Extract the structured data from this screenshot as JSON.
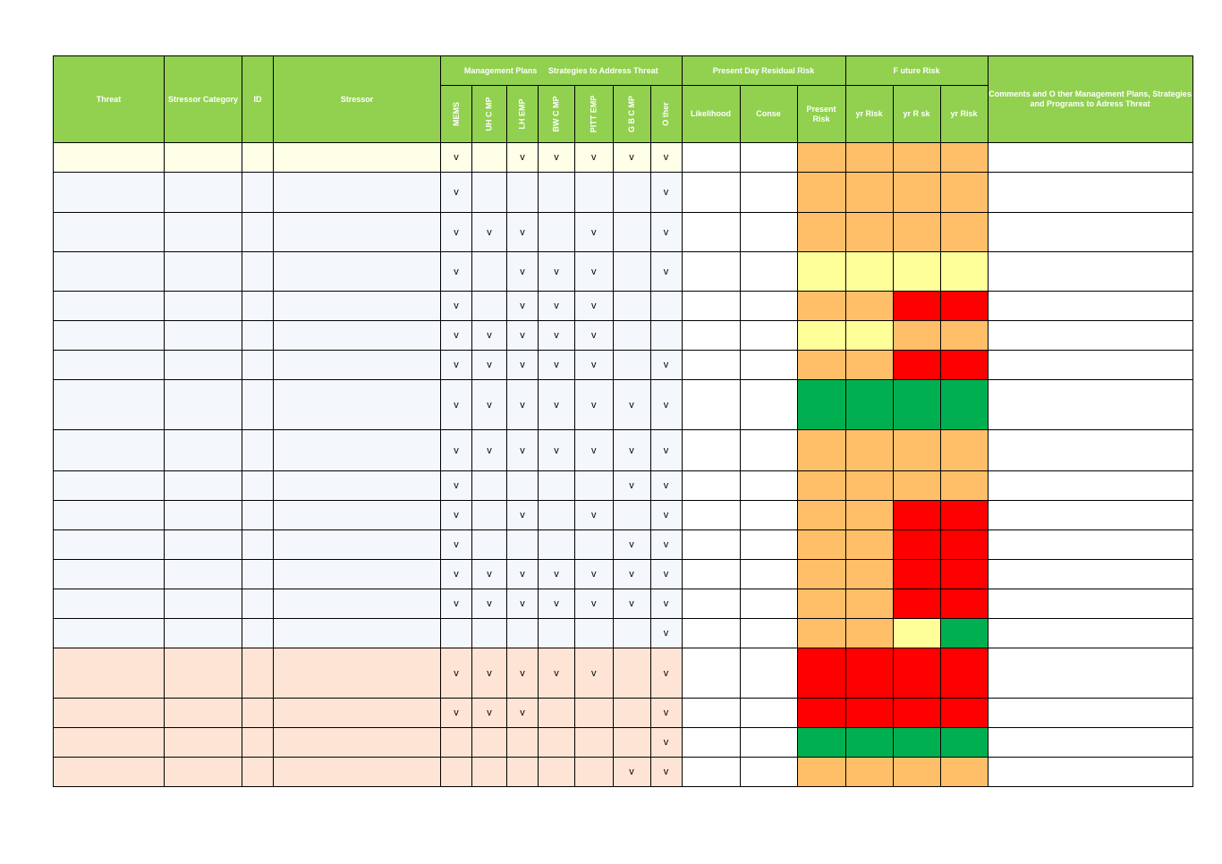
{
  "header": {
    "threat": "Threat",
    "stressor_category": "Stressor Category",
    "id": "ID",
    "stressor": "Stressor",
    "management_plans": "Management Plans     Strategies to Address Threat",
    "present_day": "Present Day Residual Risk",
    "future_risk": "F uture Risk",
    "comments": "Comments and O ther Management Plans, Strategies and Programs to Adress Threat",
    "plans": [
      "MEMS",
      "UH C   MP",
      "LH EMP",
      "BW C   MP",
      "PITT EMP",
      "G B C   MP",
      "O ther"
    ],
    "likelihood": "Likelihood",
    "conse": "Conse",
    "present_risk": "Present Risk",
    "future_cols": [
      "yr Risk",
      "yr R sk",
      "yr Risk"
    ]
  },
  "check_mark": "v",
  "colors": {
    "header_green": "#92d050",
    "orange": "#ffbf69",
    "yellow": "#ffff99",
    "red": "#ff0000",
    "green": "#00b050",
    "band_yellow": "#ffffe8",
    "band_blue": "#f4f8fd",
    "band_peach": "#fde4d4"
  },
  "rows": [
    {
      "band": "y",
      "checks": [
        1,
        0,
        1,
        1,
        1,
        1,
        1
      ],
      "risk": [
        "O",
        "O",
        "O",
        "O"
      ]
    },
    {
      "band": "b",
      "checks": [
        1,
        0,
        0,
        0,
        0,
        0,
        1
      ],
      "risk": [
        "O",
        "O",
        "O",
        "O"
      ]
    },
    {
      "band": "b",
      "checks": [
        1,
        1,
        1,
        0,
        1,
        0,
        1
      ],
      "risk": [
        "O",
        "O",
        "O",
        "O"
      ]
    },
    {
      "band": "b",
      "checks": [
        1,
        0,
        1,
        1,
        1,
        0,
        1
      ],
      "risk": [
        "Y",
        "Y",
        "Y",
        "Y"
      ]
    },
    {
      "band": "b",
      "checks": [
        1,
        0,
        1,
        1,
        1,
        0,
        0
      ],
      "risk": [
        "O",
        "O",
        "R",
        "R"
      ]
    },
    {
      "band": "b",
      "checks": [
        1,
        1,
        1,
        1,
        1,
        0,
        0
      ],
      "risk": [
        "Y",
        "Y",
        "O",
        "O"
      ]
    },
    {
      "band": "b",
      "checks": [
        1,
        1,
        1,
        1,
        1,
        0,
        1
      ],
      "risk": [
        "O",
        "O",
        "R",
        "R"
      ]
    },
    {
      "band": "b",
      "checks": [
        1,
        1,
        1,
        1,
        1,
        1,
        1
      ],
      "risk": [
        "G",
        "G",
        "G",
        "G"
      ]
    },
    {
      "band": "b",
      "checks": [
        1,
        1,
        1,
        1,
        1,
        1,
        1
      ],
      "risk": [
        "O",
        "O",
        "O",
        "O"
      ]
    },
    {
      "band": "b",
      "checks": [
        1,
        0,
        0,
        0,
        0,
        1,
        1
      ],
      "risk": [
        "O",
        "O",
        "O",
        "O"
      ]
    },
    {
      "band": "b",
      "checks": [
        1,
        0,
        1,
        0,
        1,
        0,
        1
      ],
      "risk": [
        "O",
        "O",
        "R",
        "R"
      ]
    },
    {
      "band": "b",
      "checks": [
        1,
        0,
        0,
        0,
        0,
        1,
        1
      ],
      "risk": [
        "O",
        "O",
        "R",
        "R"
      ]
    },
    {
      "band": "b",
      "checks": [
        1,
        1,
        1,
        1,
        1,
        1,
        1
      ],
      "risk": [
        "O",
        "O",
        "R",
        "R"
      ]
    },
    {
      "band": "b",
      "checks": [
        1,
        1,
        1,
        1,
        1,
        1,
        1
      ],
      "risk": [
        "O",
        "O",
        "R",
        "R"
      ]
    },
    {
      "band": "b",
      "checks": [
        0,
        0,
        0,
        0,
        0,
        0,
        1
      ],
      "risk": [
        "O",
        "O",
        "Y",
        "G"
      ]
    },
    {
      "band": "p",
      "checks": [
        1,
        1,
        1,
        1,
        1,
        0,
        1
      ],
      "risk": [
        "R",
        "R",
        "R",
        "R"
      ]
    },
    {
      "band": "p",
      "checks": [
        1,
        1,
        1,
        0,
        0,
        0,
        1
      ],
      "risk": [
        "R",
        "R",
        "R",
        "R"
      ]
    },
    {
      "band": "p",
      "checks": [
        0,
        0,
        0,
        0,
        0,
        0,
        1
      ],
      "risk": [
        "G",
        "G",
        "G",
        "G"
      ]
    },
    {
      "band": "p",
      "checks": [
        0,
        0,
        0,
        0,
        0,
        1,
        1
      ],
      "risk": [
        "O",
        "O",
        "O",
        "O"
      ]
    }
  ]
}
